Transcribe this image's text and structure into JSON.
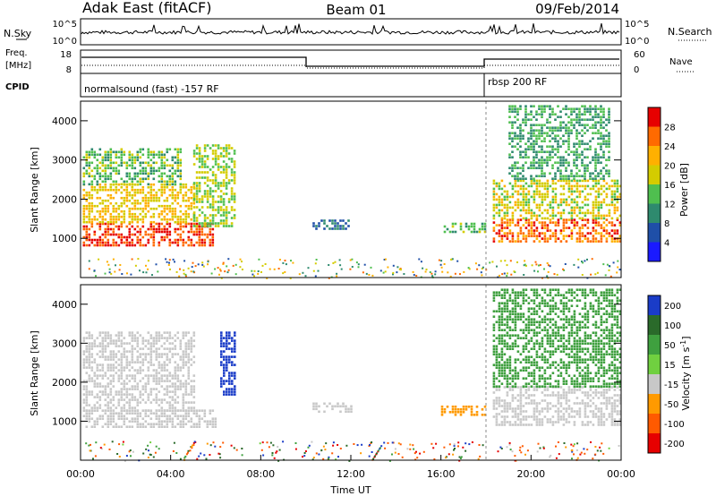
{
  "header": {
    "station": "Adak East (fitACF)",
    "beam": "Beam 01",
    "date": "09/Feb/2014"
  },
  "strips": {
    "nsky_label": "N.Sky",
    "nsky_ticks": [
      "10^5",
      "10^0"
    ],
    "nsearch_label": "N.Search",
    "freq_label_1": "Freq.",
    "freq_label_2": "[MHz]",
    "freq_ticks": [
      "18",
      "8"
    ],
    "nave_ticks": [
      "60",
      "0"
    ],
    "nave_label": "Nave",
    "cpid_label": "CPID",
    "cpid_1": "normalsound (fast) -157 RF",
    "cpid_2": "rbsp 200 RF"
  },
  "chart_data": [
    {
      "type": "heatmap",
      "panel": "power",
      "ylabel": "Slant Range [km]",
      "ylim": [
        0,
        4500
      ],
      "yticks": [
        1000,
        2000,
        3000,
        4000
      ],
      "xlim": [
        "00:00",
        "24:00"
      ],
      "colorbar_label": "Power [dB]",
      "colorbar_ticks": [
        4,
        8,
        12,
        16,
        20,
        24,
        28
      ],
      "colorbar_colors": [
        "#1a1aff",
        "#1f4fa8",
        "#2e8a6e",
        "#4fbf4f",
        "#d4cc00",
        "#ffb000",
        "#ff6a00",
        "#e60000"
      ],
      "regions": [
        {
          "t": [
            0.1,
            5.9
          ],
          "r": [
            850,
            1400
          ],
          "level": 28
        },
        {
          "t": [
            0.1,
            5.0
          ],
          "r": [
            1400,
            2400
          ],
          "level": 20
        },
        {
          "t": [
            0.1,
            4.5
          ],
          "r": [
            2400,
            3300
          ],
          "level": 14
        },
        {
          "t": [
            5.0,
            6.8
          ],
          "r": [
            1300,
            3400
          ],
          "level": 16
        },
        {
          "t": [
            10.3,
            11.9
          ],
          "r": [
            1250,
            1480
          ],
          "level": 8
        },
        {
          "t": [
            16.0,
            18.0
          ],
          "r": [
            1150,
            1400
          ],
          "level": 14
        },
        {
          "t": [
            18.3,
            24.0
          ],
          "r": [
            900,
            1500
          ],
          "level": 26
        },
        {
          "t": [
            18.3,
            24.0
          ],
          "r": [
            1500,
            2500
          ],
          "level": 18
        },
        {
          "t": [
            19.0,
            23.5
          ],
          "r": [
            2500,
            4400
          ],
          "level": 12
        }
      ]
    },
    {
      "type": "heatmap",
      "panel": "velocity",
      "ylabel": "Slant Range [km]",
      "ylim": [
        0,
        4500
      ],
      "yticks": [
        1000,
        2000,
        3000,
        4000
      ],
      "xlabel": "Time UT",
      "xticks": [
        "00:00",
        "04:00",
        "08:00",
        "12:00",
        "16:00",
        "20:00",
        "00:00"
      ],
      "colorbar_label": "Velocity [m s^-1]",
      "colorbar_ticks": [
        200,
        100,
        50,
        15,
        -15,
        -50,
        -100,
        -200
      ],
      "colorbar_colors": [
        "#1a3cc8",
        "#2a6a2a",
        "#3fa03f",
        "#70d040",
        "#c8c8c8",
        "#ff9a00",
        "#ff5a00",
        "#e60000"
      ],
      "regions": [
        {
          "t": [
            0.1,
            6.0
          ],
          "r": [
            850,
            1300
          ],
          "level": 0
        },
        {
          "t": [
            0.1,
            5.0
          ],
          "r": [
            1300,
            3300
          ],
          "level": 0
        },
        {
          "t": [
            6.2,
            6.8
          ],
          "r": [
            1700,
            3300
          ],
          "level": 180
        },
        {
          "t": [
            10.3,
            12.0
          ],
          "r": [
            1250,
            1480
          ],
          "level": 0
        },
        {
          "t": [
            16.0,
            18.0
          ],
          "r": [
            1150,
            1400
          ],
          "level": -40
        },
        {
          "t": [
            18.3,
            24.0
          ],
          "r": [
            900,
            1900
          ],
          "level": 0
        },
        {
          "t": [
            18.3,
            24.0
          ],
          "r": [
            1900,
            4400
          ],
          "level": 40
        }
      ]
    }
  ]
}
